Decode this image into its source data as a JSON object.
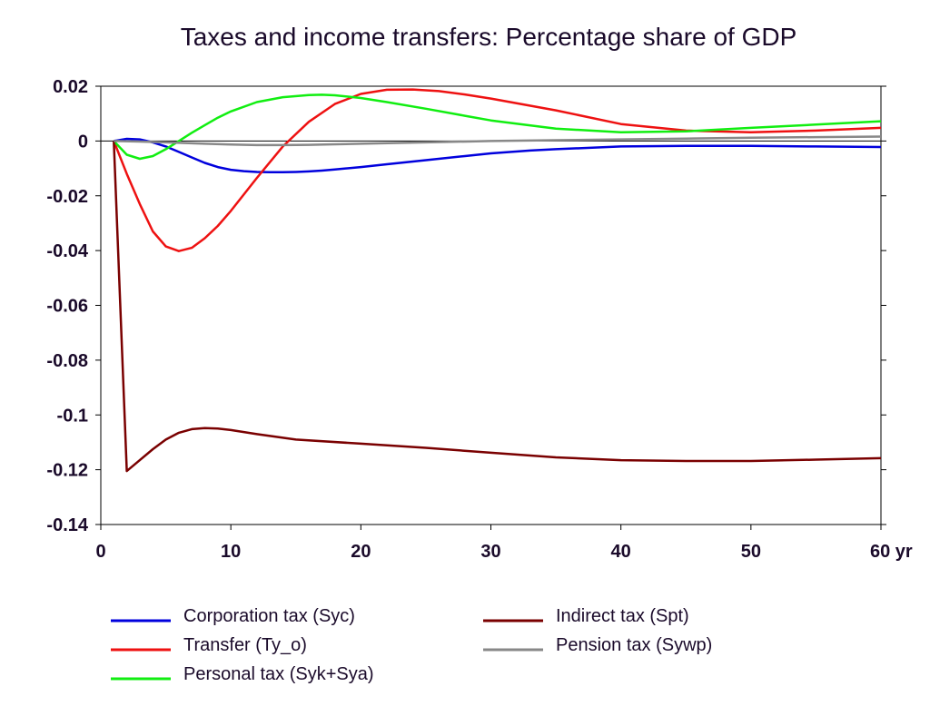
{
  "chart_data": {
    "type": "line",
    "title": "Taxes and income transfers: Percentage share of GDP",
    "xlabel": "",
    "ylabel": "",
    "x_unit_label": "yr",
    "xlim": [
      0,
      60
    ],
    "ylim": [
      -0.14,
      0.02
    ],
    "x_ticks": [
      0,
      10,
      20,
      30,
      40,
      50,
      60
    ],
    "x_tick_labels": [
      "0",
      "10",
      "20",
      "30",
      "40",
      "50",
      "60 yr"
    ],
    "y_ticks": [
      0.02,
      0,
      -0.02,
      -0.04,
      -0.06,
      -0.08,
      -0.1,
      -0.12,
      -0.14
    ],
    "y_tick_labels": [
      "0.02",
      "0",
      "-0.02",
      "-0.04",
      "-0.06",
      "-0.08",
      "-0.1",
      "-0.12",
      "-0.14"
    ],
    "grid": false,
    "zero_line": true,
    "legend_position": "bottom",
    "series": [
      {
        "name": "Corporation tax (Syc)",
        "color": "#0000dd",
        "x": [
          1,
          2,
          3,
          4,
          5,
          6,
          7,
          8,
          9,
          10,
          11,
          12,
          13,
          14,
          15,
          16,
          17,
          18,
          20,
          22,
          25,
          28,
          30,
          33,
          35,
          40,
          45,
          50,
          55,
          60
        ],
        "y": [
          0,
          0.0008,
          0.0006,
          -0.0005,
          -0.002,
          -0.004,
          -0.006,
          -0.008,
          -0.0095,
          -0.0105,
          -0.011,
          -0.0113,
          -0.0114,
          -0.0114,
          -0.0113,
          -0.0111,
          -0.0108,
          -0.0104,
          -0.0095,
          -0.0085,
          -0.007,
          -0.0055,
          -0.0045,
          -0.0035,
          -0.003,
          -0.002,
          -0.0018,
          -0.0018,
          -0.002,
          -0.0022
        ]
      },
      {
        "name": "Transfer (Ty_o)",
        "color": "#ee1111",
        "x": [
          1,
          2,
          3,
          4,
          5,
          6,
          7,
          8,
          9,
          10,
          12,
          14,
          16,
          18,
          20,
          22,
          24,
          26,
          28,
          30,
          35,
          40,
          45,
          50,
          55,
          60
        ],
        "y": [
          0,
          -0.012,
          -0.023,
          -0.033,
          -0.0385,
          -0.0402,
          -0.039,
          -0.0355,
          -0.031,
          -0.0255,
          -0.0135,
          -0.002,
          0.007,
          0.0135,
          0.0172,
          0.0187,
          0.0188,
          0.0182,
          0.017,
          0.0155,
          0.0112,
          0.0062,
          0.0038,
          0.0032,
          0.0038,
          0.0048
        ]
      },
      {
        "name": "Personal tax (Syk+Sya)",
        "color": "#11ee11",
        "x": [
          1,
          2,
          3,
          4,
          5,
          6,
          7,
          8,
          9,
          10,
          12,
          14,
          16,
          17,
          18,
          20,
          22,
          25,
          28,
          30,
          35,
          40,
          45,
          50,
          55,
          60
        ],
        "y": [
          0,
          -0.005,
          -0.0065,
          -0.0055,
          -0.003,
          0,
          0.003,
          0.0058,
          0.0085,
          0.0108,
          0.0142,
          0.016,
          0.0168,
          0.0169,
          0.0167,
          0.0157,
          0.0142,
          0.0118,
          0.0092,
          0.0075,
          0.0045,
          0.0032,
          0.0035,
          0.0048,
          0.006,
          0.0072
        ]
      },
      {
        "name": "Indirect tax (Spt)",
        "color": "#7a0000",
        "x": [
          1,
          2,
          3,
          4,
          5,
          6,
          7,
          8,
          9,
          10,
          12,
          15,
          20,
          25,
          30,
          35,
          40,
          45,
          50,
          55,
          60
        ],
        "y": [
          0,
          -0.1205,
          -0.1165,
          -0.1125,
          -0.109,
          -0.1065,
          -0.1052,
          -0.1048,
          -0.105,
          -0.1055,
          -0.107,
          -0.109,
          -0.1105,
          -0.112,
          -0.1138,
          -0.1155,
          -0.1165,
          -0.1168,
          -0.1168,
          -0.1163,
          -0.1158
        ]
      },
      {
        "name": "Pension tax (Sywp)",
        "color": "#888888",
        "x": [
          1,
          3,
          5,
          8,
          10,
          12,
          14,
          16,
          18,
          20,
          25,
          30,
          35,
          40,
          45,
          50,
          55,
          60
        ],
        "y": [
          0,
          -0.0002,
          -0.0005,
          -0.001,
          -0.0013,
          -0.0015,
          -0.0015,
          -0.0014,
          -0.0012,
          -0.001,
          -0.0005,
          0,
          0.0003,
          0.0006,
          0.0009,
          0.0012,
          0.0014,
          0.0016
        ]
      }
    ],
    "legend": [
      {
        "series": 0,
        "column": 0,
        "row": 0
      },
      {
        "series": 1,
        "column": 0,
        "row": 1
      },
      {
        "series": 2,
        "column": 0,
        "row": 2
      },
      {
        "series": 3,
        "column": 1,
        "row": 0
      },
      {
        "series": 4,
        "column": 1,
        "row": 1
      }
    ]
  }
}
